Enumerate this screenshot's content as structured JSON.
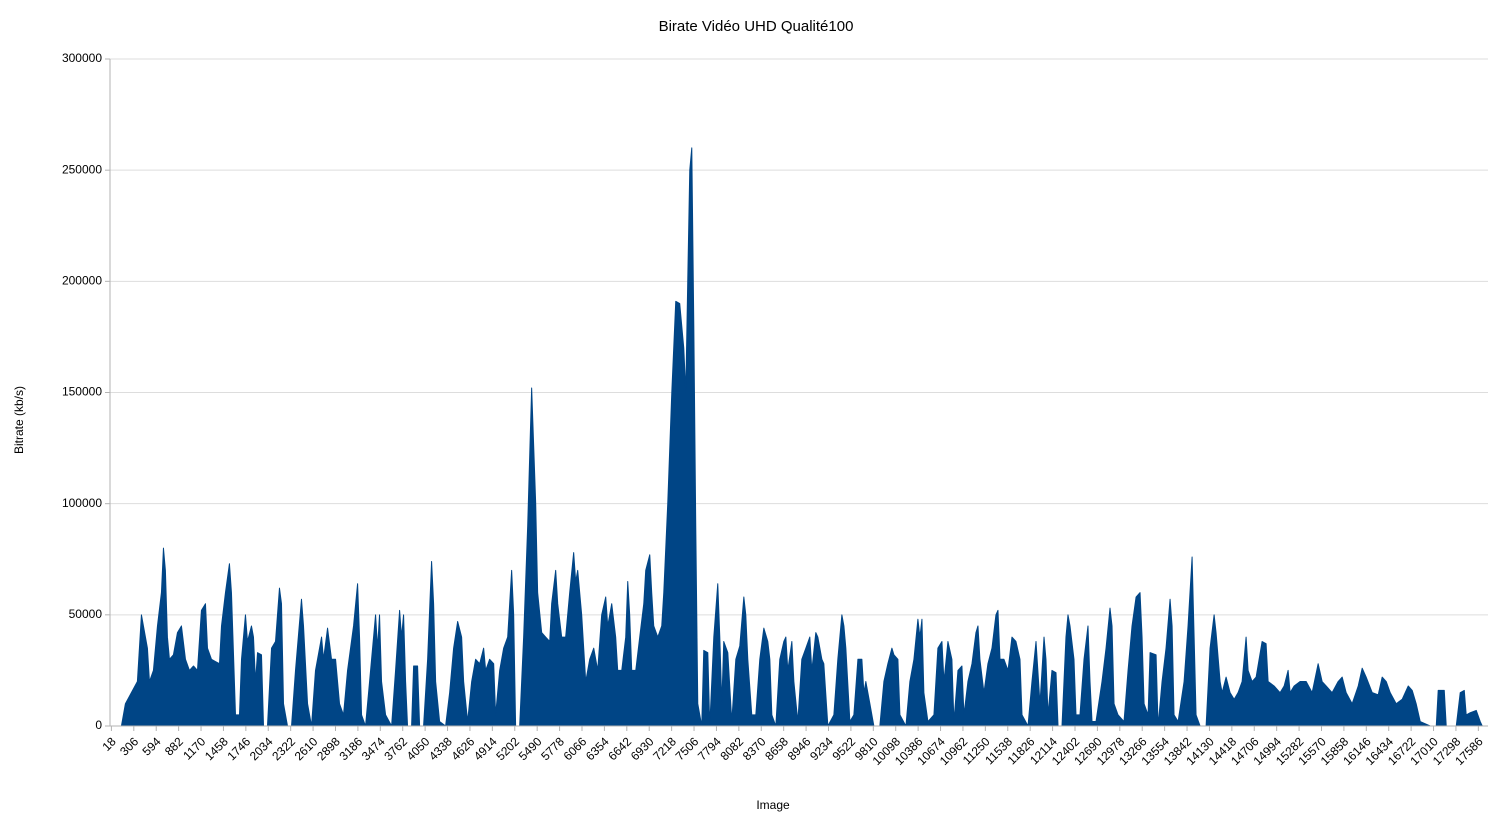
{
  "chart_data": {
    "type": "area",
    "title": "Birate Vidéo UHD Qualité100",
    "x_label": "Image",
    "y_label": "Bitrate (kb/s)",
    "color": "#004586",
    "grid": true,
    "xlim": [
      0,
      17710
    ],
    "ylim": [
      0,
      300000
    ],
    "yticks": [
      0,
      50000,
      100000,
      150000,
      200000,
      250000,
      300000
    ],
    "xticks": [
      18,
      306,
      594,
      882,
      1170,
      1458,
      1746,
      2034,
      2322,
      2610,
      2898,
      3186,
      3474,
      3762,
      4050,
      4338,
      4626,
      4914,
      5202,
      5490,
      5778,
      6066,
      6354,
      6642,
      6930,
      7218,
      7506,
      7794,
      8082,
      8370,
      8658,
      8946,
      9234,
      9522,
      9810,
      10098,
      10386,
      10674,
      10962,
      11250,
      11538,
      11826,
      12114,
      12402,
      12690,
      12978,
      13266,
      13554,
      13842,
      14130,
      14418,
      14706,
      14994,
      15282,
      15570,
      15858,
      16146,
      16434,
      16722,
      17010,
      17298,
      17586
    ],
    "x": [
      18,
      147,
      198,
      275,
      352,
      404,
      481,
      507,
      558,
      610,
      661,
      687,
      712,
      738,
      764,
      815,
      867,
      918,
      970,
      1021,
      1073,
      1124,
      1175,
      1227,
      1253,
      1304,
      1355,
      1407,
      1433,
      1484,
      1535,
      1561,
      1613,
      1664,
      1690,
      1741,
      1767,
      1818,
      1844,
      1870,
      1896,
      1947,
      1973,
      2024,
      2076,
      2127,
      2178,
      2204,
      2230,
      2281,
      2333,
      2384,
      2461,
      2487,
      2539,
      2590,
      2641,
      2719,
      2744,
      2796,
      2847,
      2899,
      2950,
      3001,
      3053,
      3130,
      3182,
      3207,
      3233,
      3284,
      3336,
      3413,
      3439,
      3464,
      3490,
      3542,
      3619,
      3670,
      3722,
      3747,
      3773,
      3799,
      3824,
      3876,
      3902,
      3953,
      3979,
      4030,
      4082,
      4133,
      4159,
      4185,
      4236,
      4313,
      4365,
      4416,
      4468,
      4519,
      4545,
      4596,
      4648,
      4699,
      4751,
      4802,
      4828,
      4879,
      4931,
      4956,
      5008,
      5059,
      5111,
      5162,
      5188,
      5213,
      5265,
      5316,
      5368,
      5419,
      5471,
      5496,
      5548,
      5599,
      5651,
      5676,
      5728,
      5754,
      5805,
      5856,
      5908,
      5959,
      5985,
      6011,
      6062,
      6114,
      6165,
      6217,
      6268,
      6319,
      6371,
      6397,
      6448,
      6499,
      6525,
      6577,
      6628,
      6654,
      6679,
      6705,
      6757,
      6808,
      6860,
      6885,
      6937,
      6962,
      6988,
      7040,
      7091,
      7117,
      7168,
      7220,
      7271,
      7322,
      7374,
      7400,
      7425,
      7451,
      7477,
      7503,
      7528,
      7554,
      7605,
      7631,
      7683,
      7708,
      7760,
      7811,
      7837,
      7863,
      7888,
      7940,
      7991,
      8043,
      8094,
      8146,
      8171,
      8197,
      8248,
      8300,
      8351,
      8403,
      8454,
      8480,
      8506,
      8557,
      8608,
      8660,
      8686,
      8711,
      8763,
      8789,
      8840,
      8891,
      8943,
      8994,
      9020,
      9071,
      9097,
      9149,
      9174,
      9226,
      9303,
      9354,
      9406,
      9432,
      9457,
      9509,
      9560,
      9612,
      9663,
      9689,
      9714,
      9766,
      9817,
      9894,
      9946,
      9997,
      10049,
      10075,
      10126,
      10152,
      10229,
      10280,
      10332,
      10383,
      10409,
      10435,
      10460,
      10512,
      10589,
      10640,
      10692,
      10718,
      10769,
      10820,
      10846,
      10898,
      10949,
      10975,
      11026,
      11078,
      11129,
      11155,
      11180,
      11232,
      11283,
      11335,
      11386,
      11412,
      11438,
      11489,
      11541,
      11592,
      11643,
      11695,
      11721,
      11798,
      11849,
      11901,
      11952,
      12004,
      12029,
      12055,
      12106,
      12158,
      12184,
      12235,
      12286,
      12312,
      12338,
      12389,
      12415,
      12466,
      12518,
      12569,
      12595,
      12621,
      12672,
      12749,
      12801,
      12852,
      12878,
      12904,
      12955,
      13032,
      13084,
      13135,
      13187,
      13238,
      13264,
      13290,
      13341,
      13367,
      13444,
      13470,
      13521,
      13572,
      13624,
      13650,
      13675,
      13727,
      13804,
      13855,
      13907,
      13933,
      13958,
      14010,
      14087,
      14138,
      14190,
      14215,
      14267,
      14293,
      14344,
      14395,
      14447,
      14498,
      14550,
      14601,
      14627,
      14678,
      14730,
      14807,
      14858,
      14884,
      14961,
      15038,
      15090,
      15141,
      15167,
      15218,
      15295,
      15373,
      15450,
      15527,
      15578,
      15630,
      15707,
      15784,
      15836,
      15887,
      15964,
      16042,
      16093,
      16144,
      16222,
      16299,
      16350,
      16402,
      16453,
      16530,
      16607,
      16685,
      16736,
      16787,
      16839,
      16967,
      17045,
      17070,
      17148,
      17173,
      17302,
      17353,
      17405,
      17430,
      17482,
      17559,
      17610,
      17636
    ],
    "values": [
      0,
      0,
      10000,
      15000,
      20000,
      50000,
      35000,
      20000,
      25000,
      45000,
      60000,
      80000,
      70000,
      40000,
      30000,
      32000,
      42000,
      45000,
      30000,
      25000,
      27000,
      25000,
      52000,
      55000,
      35000,
      30000,
      29000,
      28000,
      45000,
      60000,
      73000,
      60000,
      5000,
      5000,
      30000,
      50000,
      38000,
      45000,
      40000,
      20000,
      33000,
      32000,
      0,
      0,
      35000,
      38000,
      62000,
      55000,
      10000,
      0,
      0,
      25000,
      57000,
      45000,
      10000,
      0,
      25000,
      40000,
      30000,
      44000,
      30000,
      30000,
      10000,
      5000,
      25000,
      45000,
      64000,
      40000,
      5000,
      0,
      20000,
      50000,
      35000,
      50000,
      20000,
      5000,
      0,
      25000,
      52000,
      40000,
      50000,
      20000,
      0,
      0,
      27000,
      27000,
      0,
      0,
      30000,
      74000,
      55000,
      20000,
      2000,
      0,
      15000,
      35000,
      47000,
      40000,
      20000,
      2000,
      20000,
      30000,
      28000,
      35000,
      25000,
      30000,
      28000,
      5000,
      25000,
      35000,
      40000,
      70000,
      50000,
      0,
      0,
      40000,
      90000,
      152000,
      100000,
      60000,
      42000,
      40000,
      38000,
      55000,
      70000,
      55000,
      40000,
      40000,
      60000,
      78000,
      65000,
      70000,
      50000,
      20000,
      30000,
      35000,
      25000,
      50000,
      58000,
      45000,
      55000,
      40000,
      25000,
      25000,
      40000,
      65000,
      50000,
      25000,
      25000,
      40000,
      55000,
      70000,
      77000,
      60000,
      45000,
      40000,
      45000,
      60000,
      100000,
      150000,
      191000,
      190000,
      170000,
      150000,
      200000,
      250000,
      260000,
      180000,
      90000,
      10000,
      0,
      34000,
      33000,
      0,
      40000,
      64000,
      40000,
      10000,
      38000,
      33000,
      2000,
      30000,
      36000,
      58000,
      50000,
      30000,
      5000,
      5000,
      30000,
      44000,
      38000,
      30000,
      5000,
      0,
      30000,
      38000,
      40000,
      25000,
      38000,
      20000,
      2000,
      30000,
      35000,
      40000,
      25000,
      42000,
      40000,
      30000,
      28000,
      0,
      5000,
      30000,
      50000,
      45000,
      35000,
      2000,
      5000,
      30000,
      30000,
      15000,
      20000,
      10000,
      0,
      0,
      20000,
      28000,
      35000,
      32000,
      30000,
      5000,
      0,
      20000,
      30000,
      48000,
      40000,
      48000,
      15000,
      2000,
      5000,
      35000,
      38000,
      20000,
      38000,
      30000,
      2000,
      25000,
      27000,
      5000,
      20000,
      28000,
      42000,
      45000,
      30000,
      15000,
      28000,
      35000,
      50000,
      52000,
      30000,
      30000,
      25000,
      40000,
      38000,
      30000,
      5000,
      0,
      20000,
      38000,
      10000,
      40000,
      30000,
      5000,
      25000,
      24000,
      0,
      0,
      40000,
      50000,
      45000,
      30000,
      5000,
      5000,
      30000,
      45000,
      20000,
      2000,
      2000,
      20000,
      35000,
      53000,
      45000,
      10000,
      5000,
      2000,
      25000,
      45000,
      58000,
      60000,
      40000,
      10000,
      5000,
      33000,
      32000,
      0,
      20000,
      35000,
      57000,
      45000,
      5000,
      2000,
      20000,
      45000,
      76000,
      40000,
      5000,
      0,
      0,
      35000,
      50000,
      42000,
      20000,
      15000,
      22000,
      15000,
      12000,
      15000,
      20000,
      40000,
      25000,
      20000,
      22000,
      38000,
      37000,
      20000,
      18000,
      15000,
      18000,
      25000,
      15000,
      18000,
      20000,
      20000,
      15000,
      28000,
      20000,
      18000,
      15000,
      20000,
      22000,
      15000,
      10000,
      18000,
      26000,
      22000,
      15000,
      14000,
      22000,
      20000,
      15000,
      10000,
      12000,
      18000,
      16000,
      10000,
      2000,
      0,
      0,
      16000,
      16000,
      0,
      0,
      15000,
      16000,
      5000,
      6000,
      7000,
      2000,
      0
    ]
  }
}
